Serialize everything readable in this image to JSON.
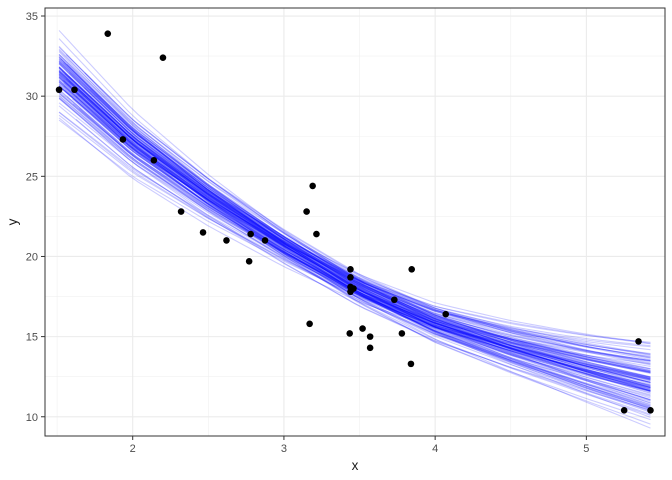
{
  "chart_data": {
    "type": "scatter",
    "title": "",
    "xlabel": "x",
    "ylabel": "y",
    "xlim": [
      1.42,
      5.52
    ],
    "ylim": [
      8.8,
      35.5
    ],
    "x_ticks": [
      2,
      3,
      4,
      5
    ],
    "y_ticks": [
      10,
      15,
      20,
      25,
      30,
      35
    ],
    "x_minor_ticks": [
      1.5,
      2.5,
      3.5,
      4.5
    ],
    "y_minor_ticks": [
      12.5,
      17.5,
      22.5,
      27.5,
      32.5
    ],
    "grid": true,
    "theme": "white background, light grey grid, dark border",
    "points": {
      "color": "#000000",
      "x": [
        1.513,
        1.615,
        1.835,
        1.935,
        2.14,
        2.2,
        2.32,
        2.465,
        2.62,
        2.77,
        2.78,
        2.875,
        3.15,
        3.17,
        3.19,
        3.215,
        3.435,
        3.44,
        3.44,
        3.44,
        3.44,
        3.46,
        3.52,
        3.57,
        3.57,
        3.73,
        3.78,
        3.84,
        3.845,
        4.07,
        5.25,
        5.345,
        5.424
      ],
      "y": [
        30.4,
        30.4,
        33.9,
        27.3,
        26.0,
        32.4,
        22.8,
        21.5,
        21.0,
        19.7,
        21.4,
        21.0,
        22.8,
        15.8,
        24.4,
        21.4,
        15.2,
        17.8,
        18.1,
        18.7,
        19.2,
        18.0,
        15.5,
        15.0,
        14.3,
        17.3,
        15.2,
        13.3,
        19.2,
        16.4,
        10.4,
        14.7,
        10.4
      ]
    },
    "fitted_curves": {
      "description": "posterior draws of a smooth curve y ~ f(x)",
      "color": "#0000ff",
      "opacity": 0.2,
      "count": 120,
      "x_start": 1.513,
      "x_end": 5.424,
      "center_curve": {
        "x": [
          1.513,
          2.0,
          2.5,
          3.0,
          3.5,
          4.0,
          4.5,
          5.0,
          5.424
        ],
        "y": [
          31.2,
          27.0,
          23.6,
          20.6,
          17.9,
          15.8,
          14.3,
          13.0,
          12.0
        ]
      }
    }
  }
}
